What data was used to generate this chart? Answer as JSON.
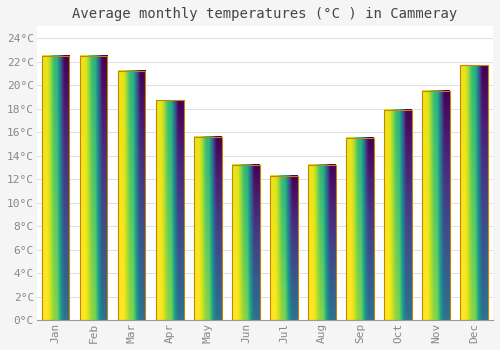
{
  "title": "Average monthly temperatures (°C ) in Cammeray",
  "months": [
    "Jan",
    "Feb",
    "Mar",
    "Apr",
    "May",
    "Jun",
    "Jul",
    "Aug",
    "Sep",
    "Oct",
    "Nov",
    "Dec"
  ],
  "values": [
    22.5,
    22.5,
    21.2,
    18.7,
    15.6,
    13.2,
    12.3,
    13.2,
    15.5,
    17.9,
    19.5,
    21.7
  ],
  "bar_color_top": "#F5A800",
  "bar_color_bottom": "#FFD060",
  "bar_edge_color": "#C8820A",
  "ylim": [
    0,
    25
  ],
  "ytick_max": 24,
  "ytick_step": 2,
  "background_color": "#f5f5f5",
  "plot_bg_color": "#ffffff",
  "grid_color": "#e0e0e0",
  "title_fontsize": 10,
  "tick_fontsize": 8,
  "tick_label_color": "#888888",
  "font_family": "monospace"
}
